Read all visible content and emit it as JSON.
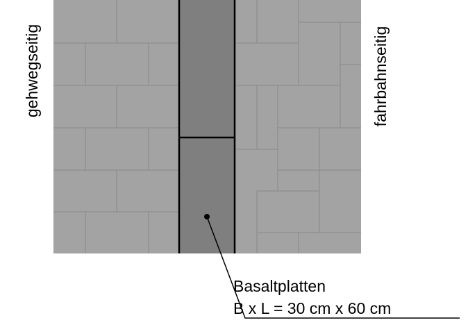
{
  "labels": {
    "left_side": "gehwegseitig",
    "right_side": "fahrbahnseitig"
  },
  "callout": {
    "material": "Basaltplatten",
    "dimensions": "B x L = 30 cm x 60 cm"
  }
}
